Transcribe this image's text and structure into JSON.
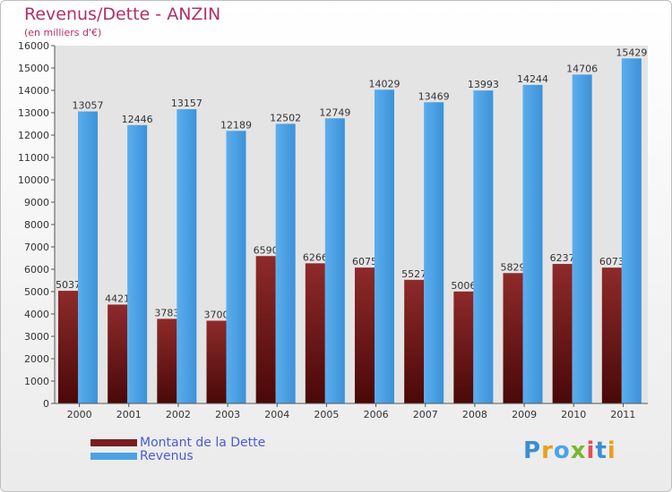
{
  "chart_data": {
    "type": "bar",
    "title": "Revenus/Dette - ANZIN",
    "subtitle": "(en milliers d'€)",
    "categories": [
      "2000",
      "2001",
      "2002",
      "2003",
      "2004",
      "2005",
      "2006",
      "2007",
      "2008",
      "2009",
      "2010",
      "2011"
    ],
    "series": [
      {
        "name": "Montant de la Dette",
        "color": "#7a1e1e",
        "values": [
          5037,
          4421,
          3783,
          3700,
          6590,
          6266,
          6075,
          5527,
          5006,
          5829,
          6237,
          6073
        ]
      },
      {
        "name": "Revenus",
        "color": "#4ba3e6",
        "values": [
          13057,
          12446,
          13157,
          12189,
          12502,
          12749,
          14029,
          13469,
          13993,
          14244,
          14706,
          15429
        ]
      }
    ],
    "ylim": [
      0,
      16000
    ],
    "ytick_step": 1000,
    "grid": false,
    "legend_position": "bottom-left"
  },
  "logo": {
    "text": "Proxiti",
    "colors": [
      "#3a8fd0",
      "#e8a020",
      "#4ba3e6",
      "#7ab62f",
      "#e05050",
      "#3a8fd0",
      "#e8a020"
    ]
  }
}
